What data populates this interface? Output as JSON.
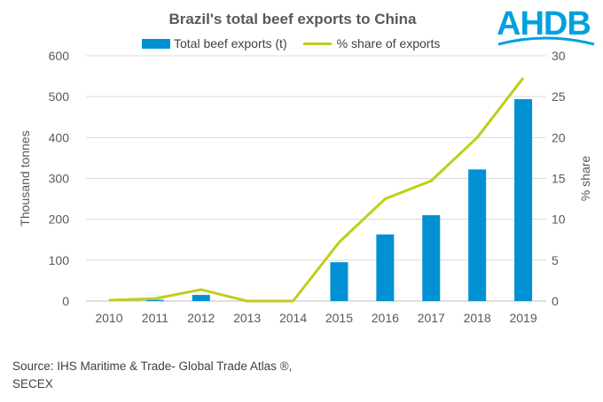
{
  "logo": {
    "text": "AHDB",
    "color": "#00A1DE"
  },
  "source": {
    "line1": "Source: IHS Maritime & Trade- Global Trade Atlas ®,",
    "line2": " SECEX"
  },
  "chart_data": {
    "type": "bar",
    "title": "Brazil's total beef exports to China",
    "categories": [
      "2010",
      "2011",
      "2012",
      "2013",
      "2014",
      "2015",
      "2016",
      "2017",
      "2018",
      "2019"
    ],
    "series": [
      {
        "name": "Total beef exports (t)",
        "type": "bar",
        "axis": "left",
        "color": "#0091D5",
        "values": [
          0,
          3,
          15,
          0,
          0,
          95,
          163,
          210,
          322,
          494
        ]
      },
      {
        "name": "% share of exports",
        "type": "line",
        "axis": "right",
        "color": "#BFCE1A",
        "values": [
          0.1,
          0.3,
          1.4,
          0,
          0,
          7.2,
          12.5,
          14.7,
          20.0,
          27.3
        ]
      }
    ],
    "ylabel": "Thousand  tonnes",
    "y2label": "% share",
    "ylim": [
      0,
      600
    ],
    "y2lim": [
      0,
      30
    ],
    "yticks": [
      "0",
      "100",
      "200",
      "300",
      "400",
      "500",
      "600"
    ],
    "y2ticks": [
      "0",
      "5",
      "10",
      "15",
      "20",
      "25",
      "30"
    ],
    "grid": true,
    "legend_position": "top"
  }
}
